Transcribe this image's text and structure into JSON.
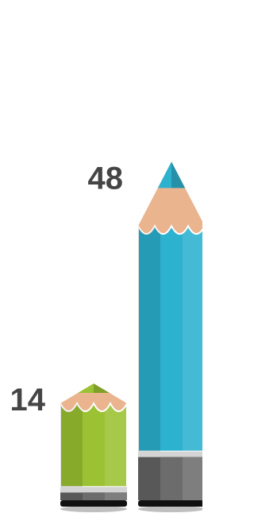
{
  "chart_data": {
    "type": "bar",
    "values": [
      14,
      48
    ],
    "colors": [
      "#9bc232",
      "#2cb1cf"
    ]
  }
}
